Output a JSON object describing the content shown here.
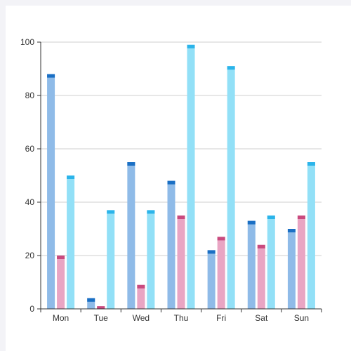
{
  "chart_data": {
    "type": "bar",
    "categories": [
      "Mon",
      "Tue",
      "Wed",
      "Thu",
      "Fri",
      "Sat",
      "Sun"
    ],
    "series": [
      {
        "values": [
          88,
          4,
          55,
          48,
          22,
          33,
          30
        ],
        "color": "#8fbbe8",
        "cap_color": "#1a6fc4"
      },
      {
        "values": [
          20,
          1,
          9,
          35,
          27,
          24,
          35
        ],
        "color": "#e9a5c3",
        "cap_color": "#c94a7e"
      },
      {
        "values": [
          50,
          37,
          37,
          99,
          91,
          35,
          55
        ],
        "color": "#92e0f7",
        "cap_color": "#2bb4ea"
      }
    ],
    "ylim": [
      0,
      100
    ],
    "yticks": [
      "0",
      "20",
      "40",
      "60",
      "80",
      "100"
    ],
    "grid": true,
    "title": "",
    "xlabel": "",
    "ylabel": ""
  }
}
